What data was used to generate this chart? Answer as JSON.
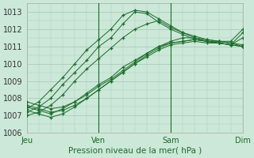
{
  "xlabel": "Pression niveau de la mer( hPa )",
  "background_color": "#cce8d8",
  "grid_color": "#aaccbb",
  "line_color": "#1a6b2a",
  "ylim": [
    1006.0,
    1013.5
  ],
  "xlim": [
    0,
    90
  ],
  "day_ticks": [
    0,
    30,
    60,
    90
  ],
  "day_labels": [
    "Jeu",
    "Ven",
    "Sam",
    "Dim"
  ],
  "yticks": [
    1006,
    1007,
    1008,
    1009,
    1010,
    1011,
    1012,
    1013
  ],
  "series": [
    {
      "x": [
        0,
        5,
        10,
        15,
        20,
        25,
        30,
        35,
        40,
        45,
        50,
        55,
        60,
        65,
        70,
        75,
        80,
        85,
        90
      ],
      "y": [
        1007.4,
        1007.8,
        1008.5,
        1009.2,
        1010.0,
        1010.8,
        1011.4,
        1012.0,
        1012.8,
        1013.1,
        1013.0,
        1012.6,
        1012.2,
        1011.8,
        1011.5,
        1011.3,
        1011.2,
        1011.1,
        1011.5
      ]
    },
    {
      "x": [
        0,
        5,
        10,
        15,
        20,
        25,
        30,
        35,
        40,
        45,
        50,
        55,
        60,
        65,
        70,
        75,
        80,
        85,
        90
      ],
      "y": [
        1007.2,
        1007.5,
        1008.0,
        1008.8,
        1009.5,
        1010.2,
        1011.0,
        1011.5,
        1012.3,
        1013.0,
        1012.9,
        1012.4,
        1012.0,
        1011.7,
        1011.4,
        1011.3,
        1011.2,
        1011.1,
        1011.8
      ]
    },
    {
      "x": [
        0,
        5,
        10,
        15,
        20,
        25,
        30,
        35,
        40,
        45,
        50,
        55,
        60,
        65,
        70,
        75,
        80,
        85,
        90
      ],
      "y": [
        1007.0,
        1007.2,
        1007.6,
        1008.2,
        1009.0,
        1009.7,
        1010.3,
        1010.9,
        1011.5,
        1012.0,
        1012.3,
        1012.5,
        1012.1,
        1011.8,
        1011.6,
        1011.4,
        1011.3,
        1011.3,
        1012.0
      ]
    },
    {
      "x": [
        0,
        5,
        10,
        15,
        20,
        25,
        30,
        35,
        40,
        45,
        50,
        55,
        60,
        65,
        70,
        75,
        80,
        85,
        90
      ],
      "y": [
        1007.5,
        1007.3,
        1007.1,
        1007.4,
        1007.8,
        1008.3,
        1008.8,
        1009.2,
        1009.8,
        1010.2,
        1010.6,
        1011.0,
        1011.3,
        1011.5,
        1011.5,
        1011.4,
        1011.3,
        1011.2,
        1011.1
      ]
    },
    {
      "x": [
        0,
        5,
        10,
        15,
        20,
        25,
        30,
        35,
        40,
        45,
        50,
        55,
        60,
        65,
        70,
        75,
        80,
        85,
        90
      ],
      "y": [
        1007.3,
        1007.1,
        1006.9,
        1007.1,
        1007.5,
        1008.0,
        1008.5,
        1009.0,
        1009.5,
        1010.0,
        1010.4,
        1010.8,
        1011.1,
        1011.2,
        1011.3,
        1011.2,
        1011.2,
        1011.1,
        1011.0
      ]
    },
    {
      "x": [
        0,
        5,
        10,
        15,
        20,
        25,
        30,
        35,
        40,
        45,
        50,
        55,
        60,
        65,
        70,
        75,
        80,
        85,
        90
      ],
      "y": [
        1007.6,
        1007.4,
        1007.2,
        1007.3,
        1007.6,
        1008.0,
        1008.5,
        1009.0,
        1009.5,
        1010.0,
        1010.5,
        1010.9,
        1011.2,
        1011.3,
        1011.4,
        1011.3,
        1011.3,
        1011.2,
        1011.0
      ]
    },
    {
      "x": [
        0,
        5,
        10,
        15,
        20,
        25,
        30,
        35,
        40,
        45,
        50,
        55,
        60,
        65,
        70,
        75,
        80,
        85,
        90
      ],
      "y": [
        1007.8,
        1007.6,
        1007.4,
        1007.5,
        1007.8,
        1008.2,
        1008.7,
        1009.1,
        1009.6,
        1010.1,
        1010.6,
        1011.0,
        1011.2,
        1011.3,
        1011.4,
        1011.3,
        1011.2,
        1011.1,
        1011.0
      ]
    }
  ]
}
